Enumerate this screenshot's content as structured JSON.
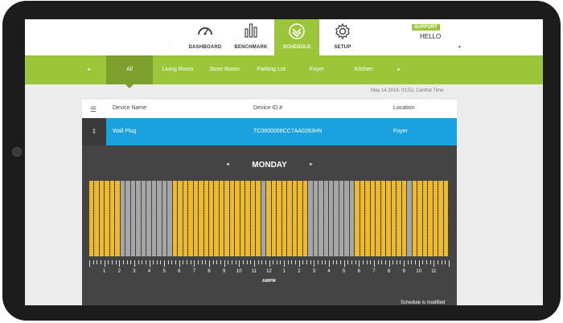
{
  "nav": {
    "items": [
      {
        "label": "DASHBOARD",
        "icon": "gauge-icon"
      },
      {
        "label": "BENCHMARK",
        "icon": "bar-chart-icon"
      },
      {
        "label": "SCHEDULE",
        "icon": "schedule-check-icon"
      },
      {
        "label": "SETUP",
        "icon": "gear-icon"
      }
    ],
    "active": "SCHEDULE",
    "support_label": "SUPPORT",
    "greeting": "HELLO",
    "accent_color": "#9bc63a"
  },
  "tabs": {
    "items": [
      "All",
      "Living Room",
      "Store Room",
      "Parking Lot",
      "Foyer",
      "Kitchen"
    ],
    "active": "All"
  },
  "timestamp": "May 14 2018, 01:52, Central Time",
  "table": {
    "headers": [
      "Device Name",
      "Device ID #",
      "Location"
    ],
    "row": {
      "name": "Wall Plug",
      "id": "TC0600008CC7AA0263HN",
      "location": "Foyer"
    }
  },
  "schedule": {
    "day": "MONDAY",
    "slots": [
      1,
      1,
      1,
      1,
      1,
      1,
      0,
      0,
      0,
      0,
      0,
      0,
      0,
      0,
      0,
      0,
      1,
      1,
      1,
      1,
      1,
      1,
      1,
      1,
      1,
      1,
      1,
      1,
      1,
      1,
      1,
      1,
      1,
      0,
      1,
      1,
      1,
      1,
      1,
      1,
      1,
      1,
      0,
      0,
      0,
      0,
      0,
      0,
      0,
      0,
      0,
      1,
      1,
      1,
      1,
      1,
      1,
      1,
      1,
      1,
      1,
      0,
      1,
      1,
      1,
      1,
      1,
      1,
      1
    ],
    "hour_labels": [
      "1",
      "2",
      "3",
      "4",
      "5",
      "6",
      "7",
      "8",
      "9",
      "10",
      "11",
      "12",
      "1",
      "2",
      "3",
      "4",
      "5",
      "6",
      "7",
      "8",
      "9",
      "10",
      "11"
    ],
    "ampm_label": "AM/PM",
    "footnote": "Schedule is modified"
  }
}
